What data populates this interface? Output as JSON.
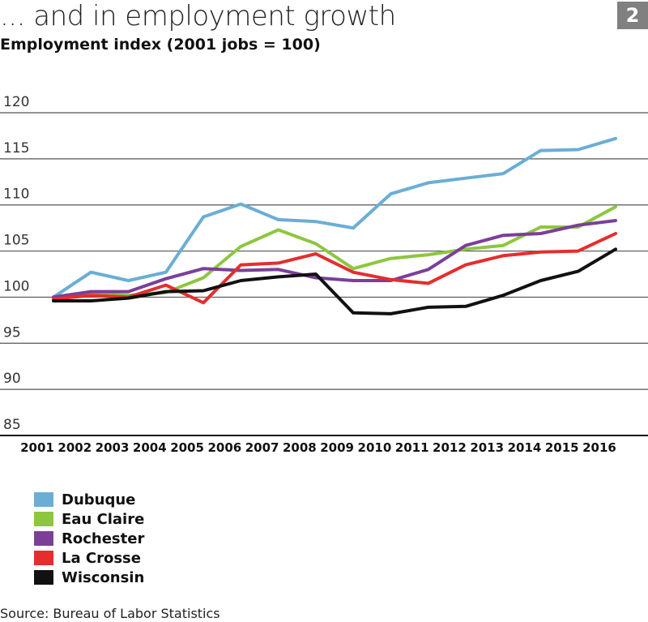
{
  "header": {
    "title": "... and in employment growth",
    "subtitle": "Employment index (2001 jobs = 100)",
    "badge": "2"
  },
  "chart_data": {
    "type": "line",
    "title": "... and in employment growth",
    "ylabel": "Employment index (2001 jobs = 100)",
    "xlabel": "",
    "ylim": [
      85,
      120
    ],
    "yticks": [
      85,
      90,
      95,
      100,
      105,
      110,
      115,
      120
    ],
    "grid": true,
    "x": [
      "2001",
      "2002",
      "2003",
      "2004",
      "2005",
      "2006",
      "2007",
      "2008",
      "2009",
      "2010",
      "2011",
      "2012",
      "2013",
      "2014",
      "2015",
      "2016"
    ],
    "series": [
      {
        "name": "Dubuque",
        "color": "#6aaed6",
        "values": [
          100.0,
          102.7,
          101.8,
          102.7,
          108.7,
          110.1,
          108.4,
          108.2,
          107.5,
          111.2,
          112.4,
          112.9,
          113.4,
          115.9,
          116.0,
          117.2
        ]
      },
      {
        "name": "Eau Claire",
        "color": "#8dc63f",
        "values": [
          100.0,
          100.4,
          100.2,
          100.5,
          102.1,
          105.5,
          107.3,
          105.8,
          103.1,
          104.2,
          104.6,
          105.2,
          105.6,
          107.6,
          107.6,
          109.8
        ]
      },
      {
        "name": "Rochester",
        "color": "#7b3f98",
        "values": [
          100.0,
          100.6,
          100.6,
          102.0,
          103.1,
          102.9,
          103.0,
          102.1,
          101.8,
          101.8,
          103.0,
          105.6,
          106.7,
          106.9,
          107.8,
          108.3
        ]
      },
      {
        "name": "La Crosse",
        "color": "#e52d2d",
        "values": [
          99.8,
          100.2,
          100.0,
          101.3,
          99.4,
          103.5,
          103.7,
          104.7,
          102.7,
          101.9,
          101.5,
          103.5,
          104.5,
          104.9,
          105.0,
          106.9
        ]
      },
      {
        "name": "Wisconsin",
        "color": "#111111",
        "values": [
          99.6,
          99.6,
          99.9,
          100.6,
          100.7,
          101.8,
          102.2,
          102.5,
          98.3,
          98.2,
          98.9,
          99.0,
          100.2,
          101.8,
          102.8,
          105.2
        ]
      }
    ]
  },
  "source": "Source: Bureau of Labor Statistics"
}
